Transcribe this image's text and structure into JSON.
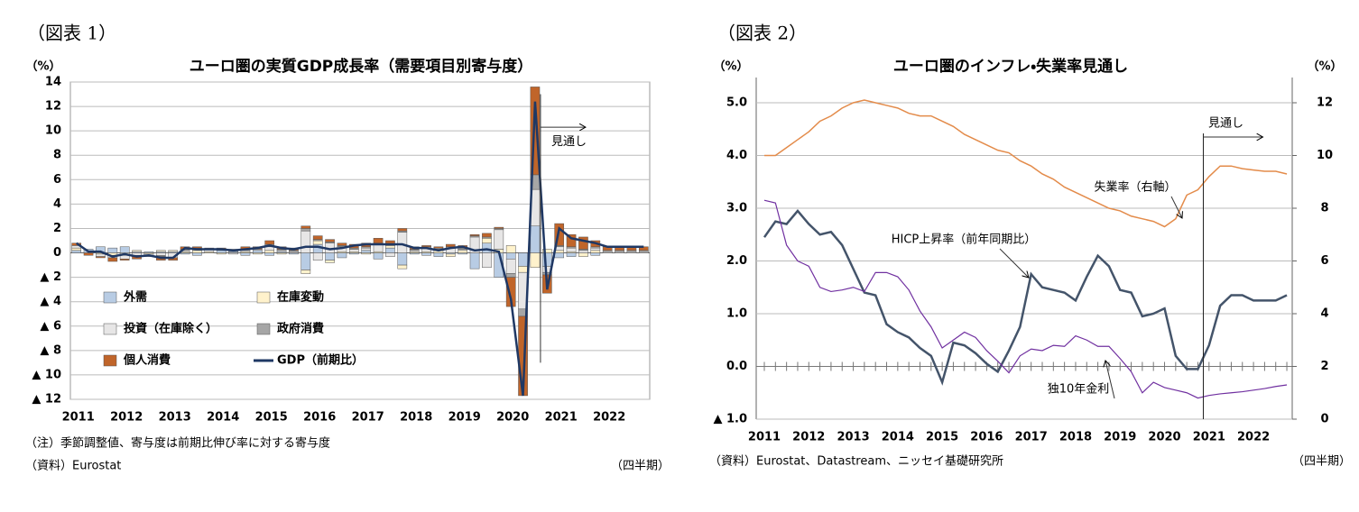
{
  "chart_data": [
    {
      "type": "bar",
      "stacked": true,
      "label": "（図表 1）",
      "title": "ユーロ圏の実質GDP成長率（需要項目別寄与度）",
      "y_label": "（%）",
      "x_unit": "（四半期）",
      "notes": [
        "（注）季節調整値、寄与度は前期比伸び率に対する寄与度",
        "（資料）Eurostat"
      ],
      "annotation": "見通し",
      "categories": [
        "2011",
        null,
        null,
        null,
        "2012",
        null,
        null,
        null,
        "2013",
        null,
        null,
        null,
        "2014",
        null,
        null,
        null,
        "2015",
        null,
        null,
        null,
        "2016",
        null,
        null,
        null,
        "2017",
        null,
        null,
        null,
        "2018",
        null,
        null,
        null,
        "2019",
        null,
        null,
        null,
        "2020",
        null,
        null,
        null,
        "2021",
        null,
        null,
        null,
        "2022",
        null,
        null,
        null
      ],
      "ylim": [
        -12,
        14
      ],
      "yticks": [
        {
          "value": -12,
          "label": "▲ 12"
        },
        {
          "value": -10,
          "label": "▲ 10"
        },
        {
          "value": -8,
          "label": "▲ 8"
        },
        {
          "value": -6,
          "label": "▲ 6"
        },
        {
          "value": -4,
          "label": "▲ 4"
        },
        {
          "value": -2,
          "label": "▲ 2"
        },
        0,
        2,
        4,
        6,
        8,
        10,
        12,
        14
      ],
      "grid": true,
      "series": [
        {
          "name": "外需",
          "type": "bar",
          "color": "#b8cce4",
          "values": [
            0.2,
            0.3,
            0.5,
            0.4,
            0.5,
            0.1,
            0.1,
            0.1,
            0.1,
            -0.1,
            -0.2,
            0,
            0.2,
            0.1,
            -0.2,
            0.2,
            -0.2,
            0.1,
            -0.1,
            -1.4,
            0.7,
            -0.6,
            -0.4,
            -0.1,
            0.2,
            -0.5,
            0.4,
            -1,
            -0.1,
            -0.2,
            -0.3,
            -0.1,
            -0.1,
            -1.3,
            0.8,
            -2,
            -0.5,
            -1.1,
            2.2,
            -1.1,
            -0.4,
            -0.3,
            0,
            -0.2,
            0,
            0,
            0,
            0
          ]
        },
        {
          "name": "在庫変動",
          "type": "bar",
          "color": "#fff2cc",
          "values": [
            0.2,
            0,
            -0.1,
            -0.2,
            -0.2,
            0.1,
            -0.1,
            0.1,
            0.1,
            0.1,
            0.2,
            0.1,
            -0.1,
            0,
            0.1,
            -0.1,
            0.2,
            -0.1,
            0,
            -0.3,
            0.3,
            -0.2,
            0.1,
            0.1,
            -0.1,
            0.1,
            0.2,
            -0.3,
            0.1,
            0.1,
            0.2,
            -0.2,
            0.2,
            0,
            0.4,
            0.3,
            0.6,
            -0.5,
            -1.2,
            0.3,
            0.2,
            0.1,
            -0.3,
            0.2,
            0,
            0,
            0,
            0
          ]
        },
        {
          "name": "投資（在庫除く）",
          "type": "bar",
          "color": "#e7e6e6",
          "values": [
            0.2,
            0,
            -0.2,
            -0.2,
            -0.3,
            -0.2,
            -0.1,
            -0.2,
            -0.4,
            0.1,
            0.1,
            0.2,
            0.1,
            -0.1,
            0.1,
            0.1,
            0.3,
            0.1,
            0.1,
            1.8,
            -0.6,
            0.8,
            0.4,
            0.2,
            0.2,
            0.6,
            -0.3,
            1.7,
            0.1,
            0.3,
            0.1,
            0.4,
            0.1,
            1.3,
            -1.2,
            1.6,
            -1.2,
            -3,
            3,
            -0.5,
            0.3,
            0.3,
            0.2,
            0.2,
            0.1,
            0.1,
            0.1,
            0.1
          ]
        },
        {
          "name": "政府消費",
          "type": "bar",
          "color": "#a6a6a6",
          "values": [
            0,
            0,
            0,
            0,
            0,
            0,
            0,
            -0.1,
            0,
            0.1,
            0.1,
            0,
            0,
            0.1,
            0.1,
            0,
            0.2,
            0.1,
            0.1,
            0.2,
            0.1,
            0.1,
            0.1,
            0.1,
            0.1,
            0.1,
            0.1,
            0.1,
            0.1,
            0.1,
            0.1,
            0.1,
            0.1,
            0.1,
            0.1,
            0.1,
            -0.3,
            -0.6,
            1.2,
            -0.2,
            0.1,
            0.1,
            0.1,
            0.1,
            0.1,
            0.1,
            0.1,
            0.1
          ]
        },
        {
          "name": "個人消費",
          "type": "bar",
          "color": "#c0652a",
          "values": [
            0.2,
            -0.2,
            -0.1,
            -0.3,
            -0.1,
            -0.3,
            -0.1,
            -0.3,
            -0.2,
            0.2,
            0.1,
            0.1,
            0.1,
            0.1,
            0.2,
            0.2,
            0.3,
            0.2,
            0.2,
            0.2,
            0.3,
            0.2,
            0.2,
            0.3,
            0.3,
            0.4,
            0.3,
            0.2,
            0.2,
            0.1,
            0.1,
            0.2,
            0.2,
            0.1,
            0.3,
            0.1,
            -2.4,
            -6.5,
            7.2,
            -1.5,
            1.8,
            1,
            1,
            0.5,
            0.3,
            0.3,
            0.3,
            0.3
          ]
        },
        {
          "name": "GDP（前期比）",
          "type": "line",
          "color": "#1f3864",
          "values": [
            0.8,
            0.1,
            0.1,
            -0.3,
            -0.1,
            -0.3,
            -0.2,
            -0.4,
            -0.4,
            0.4,
            0.3,
            0.3,
            0.3,
            0.2,
            0.3,
            0.4,
            0.6,
            0.4,
            0.3,
            0.5,
            0.5,
            0.3,
            0.4,
            0.6,
            0.7,
            0.7,
            0.7,
            0.7,
            0.4,
            0.4,
            0.2,
            0.4,
            0.5,
            0.2,
            0.3,
            0.1,
            -3.8,
            -11.7,
            12.4,
            -3,
            2,
            1.2,
            1,
            0.8,
            0.5,
            0.5,
            0.5,
            0.5
          ]
        }
      ]
    },
    {
      "type": "line",
      "label": "（図表 2）",
      "title": "ユーロ圏のインフレ・失業率見通し",
      "y_label": "（%）",
      "y2_label": "（%）",
      "x_unit": "（四半期）",
      "notes": [
        "（資料）Eurostat、Datastream、ニッセイ基礎研究所"
      ],
      "annotation": "見通し",
      "categories": [
        "2011",
        null,
        null,
        null,
        "2012",
        null,
        null,
        null,
        "2013",
        null,
        null,
        null,
        "2014",
        null,
        null,
        null,
        "2015",
        null,
        null,
        null,
        "2016",
        null,
        null,
        null,
        "2017",
        null,
        null,
        null,
        "2018",
        null,
        null,
        null,
        "2019",
        null,
        null,
        null,
        "2020",
        null,
        null,
        null,
        "2021",
        null,
        null,
        null,
        "2022",
        null,
        null,
        null
      ],
      "ylim": [
        -1,
        5
      ],
      "yticks": [
        {
          "value": -1,
          "label": "▲ 1.0"
        },
        {
          "value": 0,
          "label": "0.0"
        },
        {
          "value": 1,
          "label": "1.0"
        },
        {
          "value": 2,
          "label": "2.0"
        },
        {
          "value": 3,
          "label": "3.0"
        },
        {
          "value": 4,
          "label": "4.0"
        },
        {
          "value": 5,
          "label": "5.0"
        }
      ],
      "y2lim": [
        0,
        12
      ],
      "y2ticks": [
        0,
        2,
        4,
        6,
        8,
        10,
        12
      ],
      "grid": true,
      "series": [
        {
          "name": "失業率（右軸）",
          "axis": "y2",
          "color": "#e38b4a",
          "values": [
            10,
            10,
            10.3,
            10.6,
            10.9,
            11.3,
            11.5,
            11.8,
            12,
            12.1,
            12,
            11.9,
            11.8,
            11.6,
            11.5,
            11.5,
            11.3,
            11.1,
            10.8,
            10.6,
            10.4,
            10.2,
            10.1,
            9.8,
            9.6,
            9.3,
            9.1,
            8.8,
            8.6,
            8.4,
            8.2,
            8,
            7.9,
            7.7,
            7.6,
            7.5,
            7.3,
            7.6,
            8.5,
            8.7,
            9.2,
            9.6,
            9.6,
            9.5,
            9.45,
            9.4,
            9.4,
            9.3
          ]
        },
        {
          "name": "HICP上昇率（前年同期比）",
          "color": "#44546a",
          "values": [
            2.45,
            2.75,
            2.7,
            2.95,
            2.7,
            2.5,
            2.55,
            2.3,
            1.85,
            1.4,
            1.35,
            0.8,
            0.65,
            0.55,
            0.35,
            0.2,
            -0.3,
            0.45,
            0.4,
            0.25,
            0.05,
            -0.1,
            0.3,
            0.75,
            1.75,
            1.5,
            1.45,
            1.4,
            1.25,
            1.7,
            2.1,
            1.9,
            1.45,
            1.4,
            0.95,
            1,
            1.1,
            0.2,
            -0.05,
            -0.05,
            0.4,
            1.15,
            1.35,
            1.35,
            1.25,
            1.25,
            1.25,
            1.35
          ]
        },
        {
          "name": "独10年金利",
          "color": "#7030a0",
          "values": [
            3.15,
            3.1,
            2.3,
            2,
            1.9,
            1.5,
            1.42,
            1.45,
            1.5,
            1.42,
            1.78,
            1.78,
            1.7,
            1.45,
            1.05,
            0.75,
            0.35,
            0.5,
            0.65,
            0.55,
            0.3,
            0.1,
            -0.12,
            0.2,
            0.33,
            0.3,
            0.4,
            0.38,
            0.58,
            0.5,
            0.38,
            0.38,
            0.15,
            -0.1,
            -0.5,
            -0.3,
            -0.4,
            -0.45,
            -0.5,
            -0.6,
            -0.55,
            -0.52,
            -0.5,
            -0.48,
            -0.45,
            -0.42,
            -0.38,
            -0.35
          ]
        }
      ]
    }
  ]
}
